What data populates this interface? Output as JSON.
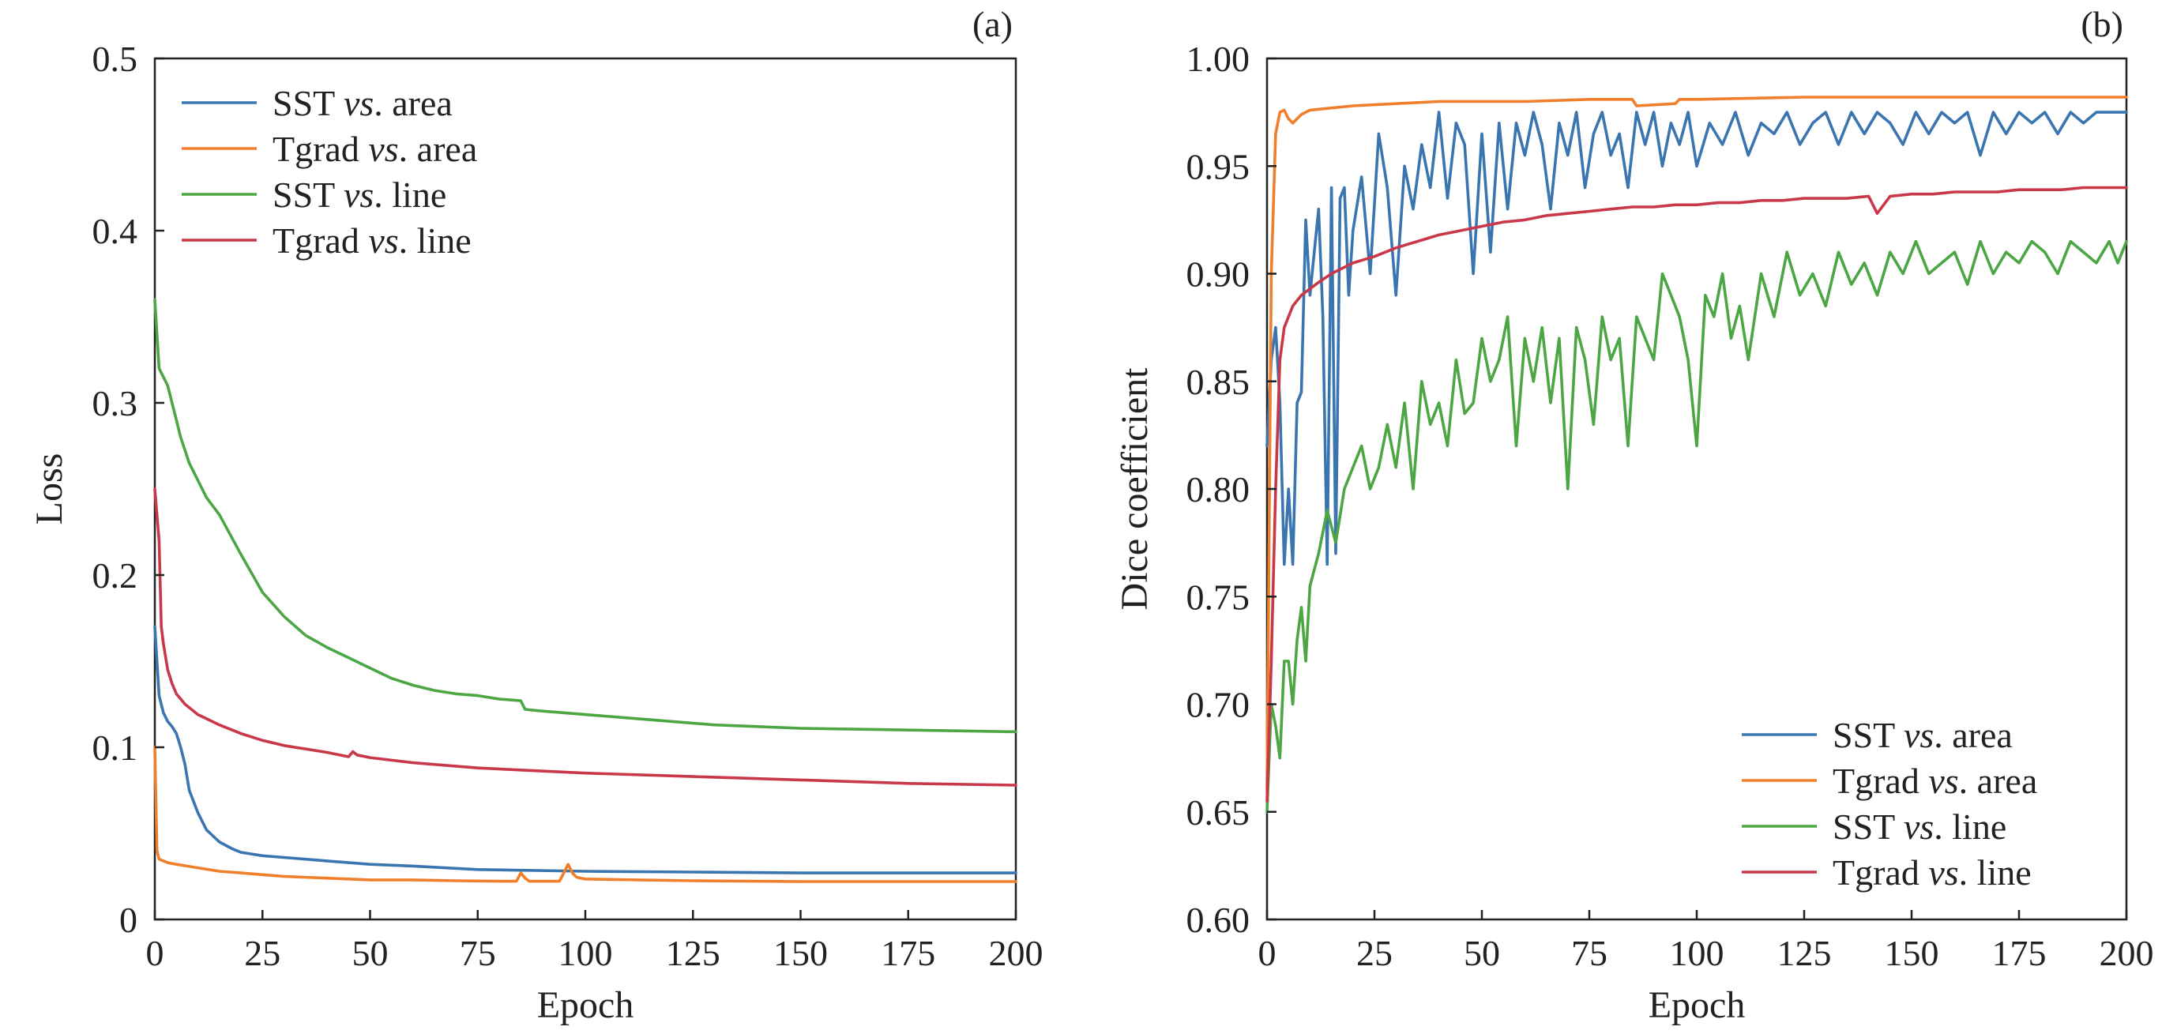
{
  "chart_data": [
    {
      "type": "line",
      "panel_label": "(a)",
      "xlabel": "Epoch",
      "ylabel": "Loss",
      "xlim": [
        0,
        200
      ],
      "ylim": [
        0,
        0.5
      ],
      "xticks": [
        0,
        25,
        50,
        75,
        100,
        125,
        150,
        175,
        200
      ],
      "yticks": [
        0,
        0.1,
        0.2,
        0.3,
        0.4,
        0.5
      ],
      "ytick_labels": [
        "0",
        "0.1",
        "0.2",
        "0.3",
        "0.4",
        "0.5"
      ],
      "grid": false,
      "legend_position": "top-left",
      "series": [
        {
          "name": "SST vs. area",
          "name_main": "SST",
          "name_vs": "vs",
          "name_rest": ". area",
          "color": "#3a75b0",
          "x": [
            0,
            1,
            2,
            3,
            4,
            5,
            6,
            7,
            8,
            10,
            12,
            15,
            18,
            20,
            25,
            30,
            40,
            50,
            60,
            75,
            100,
            125,
            150,
            175,
            200
          ],
          "y": [
            0.17,
            0.13,
            0.12,
            0.115,
            0.112,
            0.108,
            0.1,
            0.09,
            0.075,
            0.062,
            0.052,
            0.045,
            0.041,
            0.039,
            0.037,
            0.036,
            0.034,
            0.032,
            0.031,
            0.029,
            0.028,
            0.0275,
            0.027,
            0.027,
            0.027
          ]
        },
        {
          "name": "Tgrad vs. area",
          "name_main": "Tgrad",
          "name_vs": "vs",
          "name_rest": ". area",
          "color": "#f07f2c",
          "x": [
            0,
            0.5,
            1,
            3,
            5,
            10,
            15,
            20,
            25,
            30,
            40,
            50,
            60,
            70,
            80,
            84,
            85,
            86,
            87,
            90,
            94,
            95,
            96,
            97,
            98,
            100,
            125,
            150,
            175,
            200
          ],
          "y": [
            0.1,
            0.04,
            0.035,
            0.033,
            0.032,
            0.03,
            0.028,
            0.027,
            0.026,
            0.025,
            0.024,
            0.023,
            0.023,
            0.0225,
            0.0222,
            0.0222,
            0.027,
            0.024,
            0.0222,
            0.0222,
            0.0222,
            0.027,
            0.032,
            0.027,
            0.0245,
            0.0235,
            0.0225,
            0.022,
            0.022,
            0.022
          ]
        },
        {
          "name": "SST vs. line",
          "name_main": "SST",
          "name_vs": "vs",
          "name_rest": ". line",
          "color": "#4ca644",
          "x": [
            0,
            1,
            2,
            3,
            4,
            5,
            6,
            8,
            10,
            12,
            15,
            20,
            25,
            30,
            35,
            40,
            45,
            50,
            55,
            60,
            65,
            70,
            75,
            80,
            85,
            86,
            90,
            100,
            110,
            120,
            130,
            140,
            150,
            175,
            200
          ],
          "y": [
            0.36,
            0.32,
            0.315,
            0.31,
            0.3,
            0.29,
            0.28,
            0.265,
            0.255,
            0.245,
            0.235,
            0.212,
            0.19,
            0.176,
            0.165,
            0.158,
            0.152,
            0.146,
            0.14,
            0.136,
            0.133,
            0.131,
            0.13,
            0.128,
            0.127,
            0.122,
            0.121,
            0.119,
            0.117,
            0.115,
            0.113,
            0.112,
            0.111,
            0.11,
            0.109
          ]
        },
        {
          "name": "Tgrad vs. line",
          "name_main": "Tgrad",
          "name_vs": "vs",
          "name_rest": ". line",
          "color": "#c83848",
          "x": [
            0,
            1,
            1.5,
            2,
            3,
            4,
            5,
            7,
            10,
            15,
            20,
            25,
            30,
            40,
            45,
            46,
            47,
            50,
            60,
            75,
            100,
            125,
            150,
            175,
            200
          ],
          "y": [
            0.25,
            0.22,
            0.17,
            0.16,
            0.145,
            0.137,
            0.131,
            0.125,
            0.119,
            0.113,
            0.108,
            0.104,
            0.101,
            0.097,
            0.0945,
            0.0975,
            0.0955,
            0.094,
            0.091,
            0.088,
            0.085,
            0.083,
            0.081,
            0.079,
            0.078
          ]
        }
      ]
    },
    {
      "type": "line",
      "panel_label": "(b)",
      "xlabel": "Epoch",
      "ylabel": "Dice coefficient",
      "xlim": [
        0,
        200
      ],
      "ylim": [
        0.6,
        1.0
      ],
      "xticks": [
        0,
        25,
        50,
        75,
        100,
        125,
        150,
        175,
        200
      ],
      "yticks": [
        0.6,
        0.65,
        0.7,
        0.75,
        0.8,
        0.85,
        0.9,
        0.95,
        1.0
      ],
      "ytick_labels": [
        "0.60",
        "0.65",
        "0.70",
        "0.75",
        "0.80",
        "0.85",
        "0.90",
        "0.95",
        "1.00"
      ],
      "grid": false,
      "legend_position": "bottom-right",
      "series": [
        {
          "name": "SST vs. area",
          "name_main": "SST",
          "name_vs": "vs",
          "name_rest": ". area",
          "color": "#3a75b0",
          "x": [
            0,
            1,
            2,
            3,
            4,
            5,
            6,
            7,
            8,
            9,
            10,
            11,
            12,
            13,
            14,
            15,
            16,
            17,
            18,
            19,
            20,
            22,
            24,
            26,
            28,
            30,
            32,
            34,
            36,
            38,
            40,
            42,
            44,
            46,
            48,
            50,
            52,
            54,
            56,
            58,
            60,
            62,
            64,
            66,
            68,
            70,
            72,
            74,
            76,
            78,
            80,
            82,
            84,
            86,
            88,
            90,
            92,
            94,
            96,
            98,
            100,
            103,
            106,
            109,
            112,
            115,
            118,
            121,
            124,
            127,
            130,
            133,
            136,
            139,
            142,
            145,
            148,
            151,
            154,
            157,
            160,
            163,
            166,
            169,
            172,
            175,
            178,
            181,
            184,
            187,
            190,
            193,
            196,
            200
          ],
          "y": [
            0.82,
            0.86,
            0.875,
            0.84,
            0.765,
            0.8,
            0.765,
            0.84,
            0.845,
            0.925,
            0.89,
            0.91,
            0.93,
            0.88,
            0.765,
            0.94,
            0.77,
            0.935,
            0.94,
            0.89,
            0.92,
            0.945,
            0.9,
            0.965,
            0.94,
            0.89,
            0.95,
            0.93,
            0.96,
            0.94,
            0.975,
            0.935,
            0.97,
            0.96,
            0.9,
            0.965,
            0.91,
            0.97,
            0.93,
            0.97,
            0.955,
            0.975,
            0.96,
            0.93,
            0.97,
            0.955,
            0.975,
            0.94,
            0.965,
            0.975,
            0.955,
            0.965,
            0.94,
            0.975,
            0.96,
            0.975,
            0.95,
            0.97,
            0.96,
            0.975,
            0.95,
            0.97,
            0.96,
            0.975,
            0.955,
            0.97,
            0.965,
            0.975,
            0.96,
            0.97,
            0.975,
            0.96,
            0.975,
            0.965,
            0.975,
            0.97,
            0.96,
            0.975,
            0.965,
            0.975,
            0.97,
            0.975,
            0.955,
            0.975,
            0.965,
            0.975,
            0.97,
            0.975,
            0.965,
            0.975,
            0.97,
            0.975,
            0.975,
            0.975
          ]
        },
        {
          "name": "Tgrad vs. area",
          "name_main": "Tgrad",
          "name_vs": "vs",
          "name_rest": ". area",
          "color": "#f07f2c",
          "x": [
            0,
            1,
            2,
            3,
            4,
            5,
            6,
            8,
            10,
            15,
            20,
            30,
            40,
            50,
            60,
            75,
            85,
            86,
            95,
            96,
            100,
            125,
            150,
            175,
            200
          ],
          "y": [
            0.66,
            0.9,
            0.965,
            0.975,
            0.976,
            0.972,
            0.97,
            0.974,
            0.976,
            0.977,
            0.978,
            0.979,
            0.98,
            0.98,
            0.98,
            0.981,
            0.981,
            0.978,
            0.979,
            0.981,
            0.981,
            0.982,
            0.982,
            0.982,
            0.982
          ]
        },
        {
          "name": "SST vs. line",
          "name_main": "SST",
          "name_vs": "vs",
          "name_rest": ". line",
          "color": "#4ca644",
          "x": [
            0,
            1,
            2,
            3,
            4,
            5,
            6,
            7,
            8,
            9,
            10,
            12,
            14,
            16,
            18,
            20,
            22,
            24,
            26,
            28,
            30,
            32,
            34,
            36,
            38,
            40,
            42,
            44,
            46,
            48,
            50,
            52,
            54,
            56,
            58,
            60,
            62,
            64,
            66,
            68,
            70,
            72,
            74,
            76,
            78,
            80,
            82,
            84,
            86,
            88,
            90,
            92,
            94,
            96,
            98,
            100,
            102,
            104,
            106,
            108,
            110,
            112,
            115,
            118,
            121,
            124,
            127,
            130,
            133,
            136,
            139,
            142,
            145,
            148,
            151,
            154,
            157,
            160,
            163,
            166,
            169,
            172,
            175,
            178,
            181,
            184,
            187,
            190,
            193,
            196,
            198,
            200
          ],
          "y": [
            0.65,
            0.7,
            0.69,
            0.675,
            0.72,
            0.72,
            0.7,
            0.73,
            0.745,
            0.72,
            0.755,
            0.77,
            0.79,
            0.775,
            0.8,
            0.81,
            0.82,
            0.8,
            0.81,
            0.83,
            0.81,
            0.84,
            0.8,
            0.85,
            0.83,
            0.84,
            0.82,
            0.86,
            0.835,
            0.84,
            0.87,
            0.85,
            0.86,
            0.88,
            0.82,
            0.87,
            0.85,
            0.875,
            0.84,
            0.87,
            0.8,
            0.875,
            0.86,
            0.83,
            0.88,
            0.86,
            0.87,
            0.82,
            0.88,
            0.87,
            0.86,
            0.9,
            0.89,
            0.88,
            0.86,
            0.82,
            0.89,
            0.88,
            0.9,
            0.87,
            0.885,
            0.86,
            0.9,
            0.88,
            0.91,
            0.89,
            0.9,
            0.885,
            0.91,
            0.895,
            0.905,
            0.89,
            0.91,
            0.9,
            0.915,
            0.9,
            0.905,
            0.91,
            0.895,
            0.915,
            0.9,
            0.91,
            0.905,
            0.915,
            0.91,
            0.9,
            0.915,
            0.91,
            0.905,
            0.915,
            0.905,
            0.915
          ]
        },
        {
          "name": "Tgrad vs. line",
          "name_main": "Tgrad",
          "name_vs": "vs",
          "name_rest": ". line",
          "color": "#c83848",
          "x": [
            0,
            1,
            2,
            3,
            4,
            5,
            6,
            8,
            10,
            12,
            15,
            18,
            20,
            25,
            30,
            35,
            40,
            45,
            50,
            55,
            60,
            65,
            70,
            75,
            80,
            85,
            90,
            95,
            100,
            105,
            110,
            115,
            120,
            125,
            130,
            135,
            140,
            142,
            145,
            150,
            155,
            160,
            165,
            170,
            175,
            180,
            185,
            190,
            195,
            200
          ],
          "y": [
            0.655,
            0.72,
            0.8,
            0.86,
            0.875,
            0.88,
            0.885,
            0.89,
            0.893,
            0.896,
            0.9,
            0.903,
            0.905,
            0.908,
            0.912,
            0.915,
            0.918,
            0.92,
            0.922,
            0.924,
            0.925,
            0.927,
            0.928,
            0.929,
            0.93,
            0.931,
            0.931,
            0.932,
            0.932,
            0.933,
            0.933,
            0.934,
            0.934,
            0.935,
            0.935,
            0.935,
            0.936,
            0.928,
            0.936,
            0.937,
            0.937,
            0.938,
            0.938,
            0.938,
            0.939,
            0.939,
            0.939,
            0.94,
            0.94,
            0.94
          ]
        }
      ]
    }
  ]
}
